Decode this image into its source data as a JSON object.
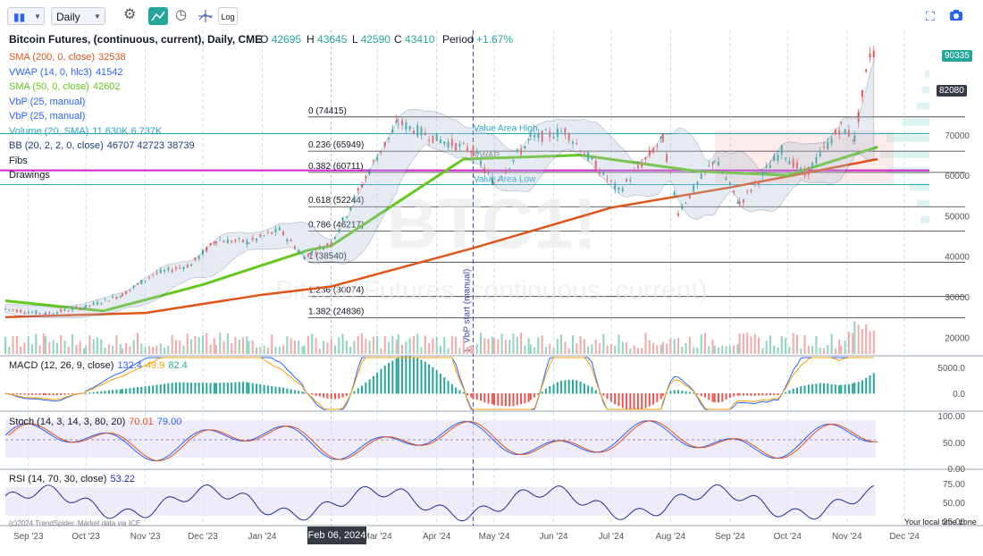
{
  "toolbar": {
    "interval": "Daily",
    "log_label": "Log"
  },
  "header": {
    "title": "Bitcoin Futures, (continuous, current), Daily, CME",
    "o_label": "O",
    "o_value": "42695",
    "h_label": "H",
    "h_value": "43645",
    "l_label": "L",
    "l_value": "42590",
    "c_label": "C",
    "c_value": "43410",
    "period_label": "Period",
    "period_value": "+1.67%"
  },
  "legend": [
    {
      "label": "SMA (200, 0, close)",
      "value": "32538",
      "color": "#e0541a"
    },
    {
      "label": "VWAP (14, 0, hlc3)",
      "value": "41542",
      "color": "#2962ff"
    },
    {
      "label": "SMA (50, 0, close)",
      "value": "42602",
      "color": "#64c81e"
    },
    {
      "label": "VbP (25, manual)",
      "value": "",
      "color": "#2962ff"
    },
    {
      "label": "VbP (25, manual)",
      "value": "",
      "color": "#2962ff"
    },
    {
      "label": "Volume (20, SMA)",
      "value": "11.630K 6.737K",
      "color": "#2aa6c4"
    },
    {
      "label": "BB (20, 2, 2, 0, close)",
      "value": "46707 42723 38739",
      "color": "#1d3c72"
    },
    {
      "label": "Fibs",
      "value": "",
      "color": "#131722"
    },
    {
      "label": "Drawings",
      "value": "",
      "color": "#131722"
    }
  ],
  "price_tags": [
    {
      "value": "90335",
      "color": "#26a69a"
    },
    {
      "value": "82080",
      "color": "#363a45"
    }
  ],
  "panes": {
    "macd": {
      "label": "MACD (12, 26, 9, close)",
      "v1": "132.4",
      "v2": "49.9",
      "v3": "82.4"
    },
    "stoch": {
      "label": "Stoch (14, 3, 14, 3, 80, 20)",
      "v1": "70.01",
      "v2": "79.00"
    },
    "rsi": {
      "label": "RSI (14, 70, 30, close)",
      "v1": "53.22"
    }
  },
  "annotations": {
    "value_area_high": "Value Area High",
    "vwap": "VWAP",
    "value_area_low": "Value Area Low",
    "vbp_start": "1. VbP start (manual)",
    "watermark_ticker": "BTC1!",
    "watermark_name": "Bitcoin Futures (continuous, current)",
    "copyright": "(c)2024 TrendSpider. Market data via ICE",
    "local_time": "Your local time zone",
    "crosshair_date": "Feb 06, 2024"
  },
  "colors": {
    "sma200": "#e0541a",
    "sma50": "#64c81e",
    "vwap": "#2962ff",
    "bb": "#1d3c72",
    "up": "#26a69a",
    "down": "#ef5350",
    "fib": "#333333",
    "magenta": "#d21ecf",
    "cyan": "#2aa6c4"
  },
  "chart_data": {
    "type": "candlestick",
    "title": "Bitcoin Futures, (continuous, current), Daily, CME",
    "x_ticks": [
      "Sep '23",
      "Oct '23",
      "Nov '23",
      "Dec '23",
      "Jan '24",
      "Mar '24",
      "Apr '24",
      "May '24",
      "Jun '24",
      "Jul '24",
      "Aug '24",
      "Sep '24",
      "Oct '24",
      "Nov '24",
      "Dec '24"
    ],
    "y_ticks": [
      20000,
      30000,
      40000,
      50000,
      60000,
      70000
    ],
    "ylim": [
      15000,
      100000
    ],
    "price_path": [
      {
        "date": "2023-08-20",
        "close": 27000
      },
      {
        "date": "2023-09-10",
        "close": 25800
      },
      {
        "date": "2023-10-01",
        "close": 27500
      },
      {
        "date": "2023-10-20",
        "close": 30500
      },
      {
        "date": "2023-11-05",
        "close": 35500
      },
      {
        "date": "2023-11-25",
        "close": 38000
      },
      {
        "date": "2023-12-08",
        "close": 44000
      },
      {
        "date": "2023-12-25",
        "close": 43500
      },
      {
        "date": "2024-01-10",
        "close": 46500
      },
      {
        "date": "2024-01-23",
        "close": 40000
      },
      {
        "date": "2024-02-06",
        "close": 43410
      },
      {
        "date": "2024-02-28",
        "close": 63000
      },
      {
        "date": "2024-03-12",
        "close": 73000
      },
      {
        "date": "2024-04-01",
        "close": 69000
      },
      {
        "date": "2024-04-20",
        "close": 66000
      },
      {
        "date": "2024-05-01",
        "close": 58000
      },
      {
        "date": "2024-05-20",
        "close": 69000
      },
      {
        "date": "2024-06-07",
        "close": 71000
      },
      {
        "date": "2024-07-05",
        "close": 56000
      },
      {
        "date": "2024-07-28",
        "close": 69000
      },
      {
        "date": "2024-08-05",
        "close": 51000
      },
      {
        "date": "2024-08-24",
        "close": 64000
      },
      {
        "date": "2024-09-06",
        "close": 53000
      },
      {
        "date": "2024-09-28",
        "close": 66000
      },
      {
        "date": "2024-10-10",
        "close": 60000
      },
      {
        "date": "2024-10-29",
        "close": 72000
      },
      {
        "date": "2024-11-05",
        "close": 69000
      },
      {
        "date": "2024-11-13",
        "close": 90000
      },
      {
        "date": "2024-11-17",
        "close": 90335
      }
    ],
    "sma200_path": [
      {
        "date": "2023-08-20",
        "value": 25000
      },
      {
        "date": "2023-11-01",
        "value": 26000
      },
      {
        "date": "2024-01-01",
        "value": 30500
      },
      {
        "date": "2024-02-06",
        "value": 32538
      },
      {
        "date": "2024-04-20",
        "value": 42000
      },
      {
        "date": "2024-07-01",
        "value": 52000
      },
      {
        "date": "2024-09-01",
        "value": 57000
      },
      {
        "date": "2024-11-17",
        "value": 64000
      }
    ],
    "sma50_path": [
      {
        "date": "2023-08-20",
        "value": 29000
      },
      {
        "date": "2023-10-10",
        "value": 26500
      },
      {
        "date": "2023-12-01",
        "value": 33000
      },
      {
        "date": "2024-01-25",
        "value": 41500
      },
      {
        "date": "2024-02-06",
        "value": 42602
      },
      {
        "date": "2024-04-15",
        "value": 64000
      },
      {
        "date": "2024-06-15",
        "value": 65000
      },
      {
        "date": "2024-08-15",
        "value": 61000
      },
      {
        "date": "2024-10-01",
        "value": 60000
      },
      {
        "date": "2024-11-17",
        "value": 67000
      }
    ],
    "fib_levels": [
      {
        "label": "0 (74415)",
        "value": 74415
      },
      {
        "label": "0.236 (65949)",
        "value": 65949
      },
      {
        "label": "0.382 (60711)",
        "value": 60711
      },
      {
        "label": "0.618 (52244)",
        "value": 52244
      },
      {
        "label": "0.786 (46217)",
        "value": 46217
      },
      {
        "label": "1 (38540)",
        "value": 38540
      },
      {
        "label": "1.236 (30074)",
        "value": 30074
      },
      {
        "label": "1.382 (24836)",
        "value": 24836
      }
    ],
    "macd_ticks": [
      "5000.0",
      "0.0"
    ],
    "stoch_ticks": [
      "100.00",
      "50.00",
      "0.00"
    ],
    "rsi_ticks": [
      "75.00",
      "50.00",
      "25.00"
    ]
  }
}
